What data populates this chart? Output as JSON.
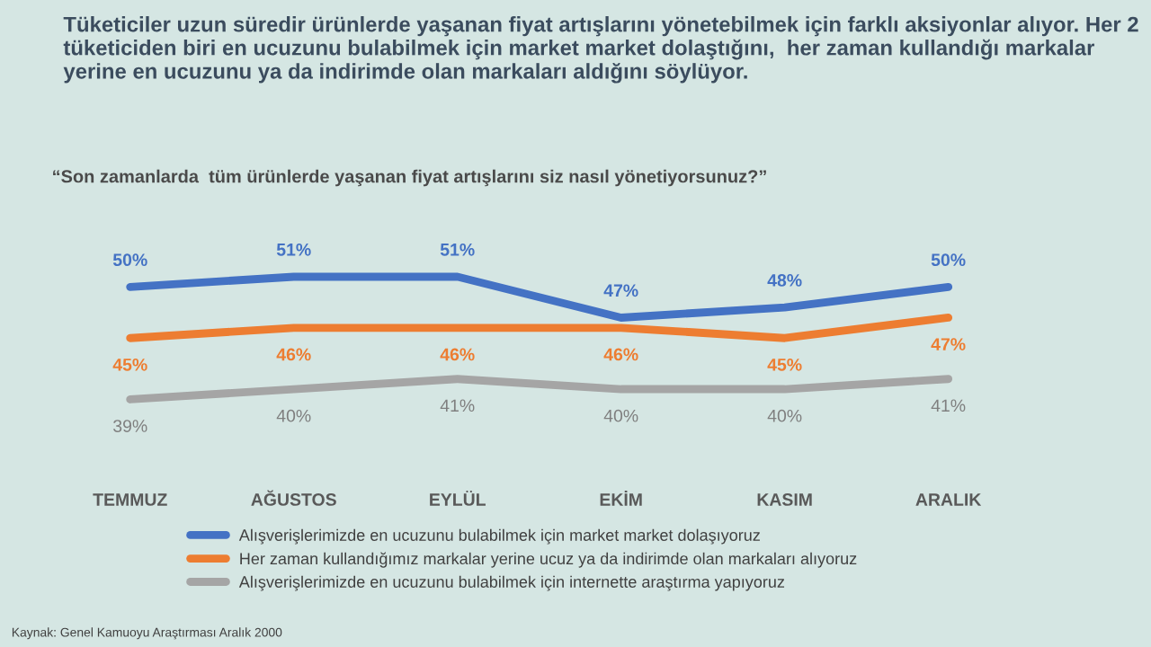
{
  "chart_data": {
    "type": "line",
    "title": "Tüketiciler uzun süredir ürünlerde yaşanan fiyat artışlarını yönetebilmek için farklı aksiyonlar alıyor. Her 2 tüketiciden biri en ucuzunu bulabilmek için market market dolaştığını,  her zaman kullandığı markalar yerine en ucuzunu ya da indirimde olan markaları aldığını söylüyor.",
    "subtitle": "“Son zamanlarda  tüm ürünlerde yaşanan fiyat artışlarını siz nasıl yönetiyorsunuz?”",
    "categories": [
      "TEMMUZ",
      "AĞUSTOS",
      "EYLÜL",
      "EKİM",
      "KASIM",
      "ARALIK"
    ],
    "series": [
      {
        "name": "Alışverişlerimizde en ucuzunu bulabilmek için market market dolaşıyoruz",
        "color": "#4472c4",
        "values": [
          50,
          51,
          51,
          47,
          48,
          50
        ],
        "value_labels": [
          "50%",
          "51%",
          "51%",
          "47%",
          "48%",
          "50%"
        ]
      },
      {
        "name": "Her zaman kullandığımız markalar yerine ucuz ya da indirimde olan markaları alıyoruz",
        "color": "#ed7d31",
        "values": [
          45,
          46,
          46,
          46,
          45,
          47
        ],
        "value_labels": [
          "45%",
          "46%",
          "46%",
          "46%",
          "45%",
          "47%"
        ]
      },
      {
        "name": "Alışverişlerimizde en ucuzunu bulabilmek için internette araştırma yapıyoruz",
        "color": "#a5a5a5",
        "values": [
          39,
          40,
          41,
          40,
          40,
          41
        ],
        "value_labels": [
          "39%",
          "40%",
          "41%",
          "40%",
          "40%",
          "41%"
        ]
      }
    ],
    "tick_labels": "x",
    "legend": "bottom",
    "grid": false,
    "marker": "none",
    "line_style": "solid",
    "annotations": [
      "Kaynak: Genel Kamuoyu Araştırması Aralık 2000"
    ]
  }
}
